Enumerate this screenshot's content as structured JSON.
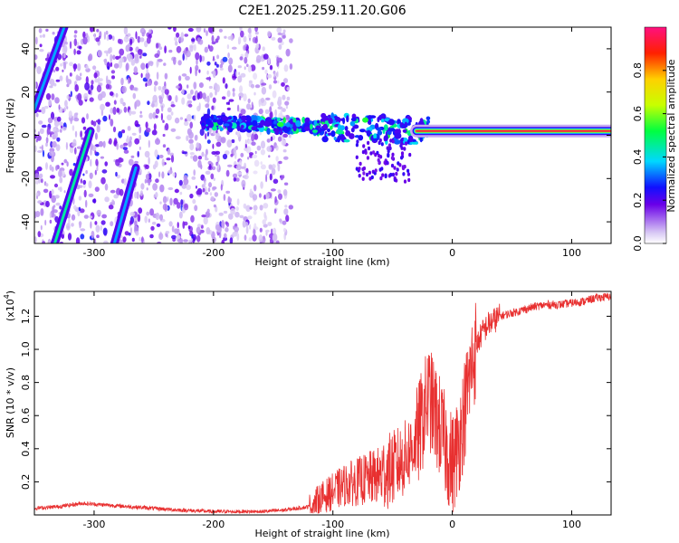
{
  "chart_data": [
    {
      "type": "heatmap",
      "title": "C2E1.2025.259.11.20.G06",
      "xlabel": "Height of straight line (km)",
      "ylabel": "Frequency (Hz)",
      "xlim": [
        -350,
        133
      ],
      "ylim": [
        -50,
        50
      ],
      "xticks": [
        -300,
        -200,
        -100,
        0,
        100
      ],
      "yticks": [
        -40,
        -20,
        0,
        20,
        40
      ],
      "colorbar": {
        "label": "Normalized spectral amplitude",
        "range": [
          0,
          1
        ],
        "ticks": [
          0.0,
          0.2,
          0.4,
          0.6,
          0.8
        ],
        "tick_labels": [
          "0.0",
          "0.2",
          "0.4",
          "0.6",
          "0.8"
        ]
      },
      "features": [
        {
          "name": "straight-line-1",
          "x": [
            -350,
            -325
          ],
          "y": [
            12,
            50
          ],
          "amp": 0.35
        },
        {
          "name": "straight-line-2",
          "x": [
            -333,
            -303
          ],
          "y": [
            -50,
            2
          ],
          "amp": 0.45
        },
        {
          "name": "straight-line-3",
          "x": [
            -283,
            -265
          ],
          "y": [
            -50,
            -15
          ],
          "amp": 0.35
        },
        {
          "name": "scatter-region",
          "x": [
            -350,
            -135
          ],
          "y": [
            -50,
            50
          ],
          "amp": 0.1
        },
        {
          "name": "signal-band",
          "x": [
            -210,
            -20
          ],
          "y": [
            2,
            8
          ],
          "amp": 0.3
        },
        {
          "name": "carrier-line",
          "x": [
            -30,
            133
          ],
          "y": [
            1,
            3
          ],
          "amp": 0.95
        }
      ]
    },
    {
      "type": "line",
      "title": "",
      "xlabel": "Height of straight line (km)",
      "ylabel": "SNR (10 * v/v)",
      "yscale_label": "(x10",
      "yscale_exp": "4",
      "ylim": [
        0,
        1.35
      ],
      "xlim": [
        -350,
        133
      ],
      "xticks": [
        -300,
        -200,
        -100,
        0,
        100
      ],
      "yticks": [
        0.2,
        0.4,
        0.6,
        0.8,
        1.0,
        1.2
      ],
      "ytick_labels": [
        "0.2",
        "0.4",
        "0.6",
        "0.8",
        "1.0",
        "1.2"
      ],
      "color": "#e83030",
      "series": [
        {
          "name": "SNR",
          "x": [
            -350,
            -330,
            -310,
            -290,
            -270,
            -250,
            -230,
            -200,
            -180,
            -160,
            -140,
            -120,
            -110,
            -100,
            -90,
            -80,
            -70,
            -60,
            -50,
            -40,
            -30,
            -25,
            -20,
            -15,
            -10,
            -5,
            0,
            5,
            10,
            15,
            20,
            25,
            30,
            40,
            50,
            60,
            70,
            80,
            90,
            100,
            110,
            120,
            133
          ],
          "values": [
            0.04,
            0.05,
            0.07,
            0.06,
            0.05,
            0.04,
            0.03,
            0.02,
            0.02,
            0.02,
            0.03,
            0.05,
            0.1,
            0.14,
            0.18,
            0.2,
            0.22,
            0.24,
            0.28,
            0.34,
            0.45,
            0.58,
            0.72,
            0.62,
            0.52,
            0.4,
            0.3,
            0.42,
            0.62,
            0.85,
            1.02,
            1.1,
            1.15,
            1.2,
            1.22,
            1.24,
            1.26,
            1.27,
            1.27,
            1.28,
            1.29,
            1.31,
            1.32
          ]
        }
      ]
    }
  ]
}
